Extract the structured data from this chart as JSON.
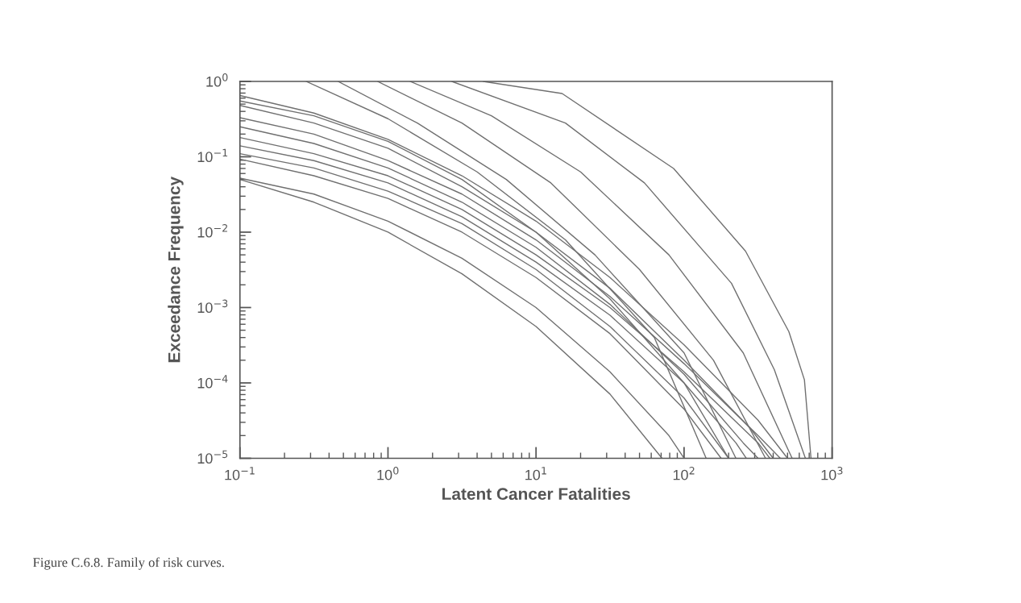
{
  "chart_data": {
    "type": "line",
    "xlabel": "Latent Cancer Fatalities",
    "ylabel": "Exceedance Frequency",
    "annotations": [
      "Figure C.6.8. Family of risk curves."
    ],
    "log": "xy",
    "grid": false,
    "marker": "none",
    "line_style": "solid",
    "xlim": [
      0.1,
      1000
    ],
    "ylim": [
      1e-05,
      1
    ],
    "xticks": [
      {
        "value": 0.1,
        "label": "10$^{−1}$"
      },
      {
        "value": 1,
        "label": "10$^{0}$"
      },
      {
        "value": 10,
        "label": "10$^{1}$"
      },
      {
        "value": 100,
        "label": "10$^{2}$"
      },
      {
        "value": 1000,
        "label": "10$^{3}$"
      }
    ],
    "yticks": [
      {
        "value": 1e-05,
        "label": "10$^{−5}$"
      },
      {
        "value": 0.0001,
        "label": "10$^{−4}$"
      },
      {
        "value": 0.001,
        "label": "10$^{−3}$"
      },
      {
        "value": 0.01,
        "label": "10$^{−2}$"
      },
      {
        "value": 0.1,
        "label": "10$^{−1}$"
      },
      {
        "value": 1,
        "label": "10$^{0}$"
      }
    ],
    "series": [
      {
        "color": "#707070",
        "x": [
          0.1,
          0.316,
          1,
          3.16,
          10,
          31.6,
          100,
          316,
          500
        ],
        "values": [
          0.65,
          0.38,
          0.17,
          0.056,
          0.014,
          0.0025,
          0.00032,
          3.2e-05,
          1e-05
        ]
      },
      {
        "color": "#707070",
        "x": [
          0.1,
          0.316,
          1,
          3.16,
          10,
          31.6,
          100,
          280,
          400
        ],
        "values": [
          0.48,
          0.28,
          0.13,
          0.04,
          0.01,
          0.0018,
          0.0002,
          2.5e-05,
          1e-05
        ]
      },
      {
        "color": "#707070",
        "x": [
          0.1,
          0.316,
          1,
          3.16,
          10,
          31.6,
          100,
          316,
          447
        ],
        "values": [
          0.33,
          0.2,
          0.089,
          0.032,
          0.0079,
          0.0014,
          0.00018,
          2e-05,
          1e-05
        ]
      },
      {
        "color": "#707070",
        "x": [
          0.1,
          0.316,
          1,
          3.16,
          10,
          31.6,
          100,
          251,
          316
        ],
        "values": [
          0.25,
          0.15,
          0.071,
          0.025,
          0.0063,
          0.0011,
          0.00013,
          1.6e-05,
          1e-05
        ]
      },
      {
        "color": "#707070",
        "x": [
          0.1,
          0.316,
          1,
          3.16,
          10,
          31.6,
          100,
          316,
          380
        ],
        "values": [
          0.18,
          0.11,
          0.056,
          0.02,
          0.005,
          0.001,
          0.00014,
          1.6e-05,
          1e-05
        ]
      },
      {
        "color": "#707070",
        "x": [
          0.1,
          0.316,
          1,
          3.16,
          10,
          31.6,
          100,
          224,
          263
        ],
        "values": [
          0.14,
          0.089,
          0.045,
          0.016,
          0.004,
          0.00079,
          0.0001,
          1.6e-05,
          1e-05
        ]
      },
      {
        "color": "#707070",
        "x": [
          0.1,
          0.316,
          1,
          3.16,
          10,
          31.6,
          100,
          200
        ],
        "values": [
          0.11,
          0.071,
          0.035,
          0.013,
          0.0032,
          0.00056,
          6.3e-05,
          1e-05
        ]
      },
      {
        "color": "#707070",
        "x": [
          0.1,
          0.316,
          1,
          3.16,
          10,
          31.6,
          100,
          178
        ],
        "values": [
          0.093,
          0.056,
          0.028,
          0.01,
          0.0025,
          0.00045,
          4.5e-05,
          1e-05
        ]
      },
      {
        "color": "#707070",
        "x": [
          0.1,
          0.316,
          1,
          3.16,
          10,
          31.6,
          79,
          100
        ],
        "values": [
          0.052,
          0.032,
          0.014,
          0.0045,
          0.001,
          0.00014,
          2e-05,
          1e-05
        ]
      },
      {
        "color": "#707070",
        "x": [
          0.1,
          0.316,
          1,
          3.16,
          10,
          31.6,
          71
        ],
        "values": [
          0.05,
          0.025,
          0.01,
          0.0028,
          0.00056,
          7.1e-05,
          1e-05
        ]
      },
      {
        "color": "#707070",
        "x": [
          0.1,
          0.316,
          1,
          3.16,
          10,
          31.6,
          100,
          200
        ],
        "values": [
          0.55,
          0.35,
          0.16,
          0.05,
          0.01,
          0.0013,
          0.0001,
          1e-05
        ]
      },
      {
        "color": "#707070",
        "x": [
          4.4,
          15,
          85,
          260,
          510,
          650,
          720
        ],
        "values": [
          1,
          0.69,
          0.07,
          0.0056,
          0.00048,
          0.00011,
          1e-05
        ]
      },
      {
        "color": "#707070",
        "x": [
          2.7,
          15.8,
          54,
          209,
          407,
          660
        ],
        "values": [
          1,
          0.28,
          0.045,
          0.0021,
          0.00015,
          1e-05
        ]
      },
      {
        "color": "#707070",
        "x": [
          1.41,
          5.0,
          20,
          79,
          251,
          537
        ],
        "values": [
          1,
          0.35,
          0.063,
          0.005,
          0.00025,
          1e-05
        ]
      },
      {
        "color": "#707070",
        "x": [
          0.85,
          3.16,
          12.6,
          50,
          158,
          355
        ],
        "values": [
          1,
          0.28,
          0.045,
          0.0032,
          0.0002,
          1e-05
        ]
      },
      {
        "color": "#707070",
        "x": [
          0.46,
          1.58,
          6.3,
          25,
          100,
          224
        ],
        "values": [
          1,
          0.28,
          0.05,
          0.005,
          0.00025,
          1e-05
        ]
      },
      {
        "color": "#707070",
        "x": [
          0.28,
          1,
          4.0,
          15.8,
          63,
          141
        ],
        "values": [
          1,
          0.32,
          0.063,
          0.0079,
          0.0004,
          1e-05
        ]
      }
    ]
  }
}
